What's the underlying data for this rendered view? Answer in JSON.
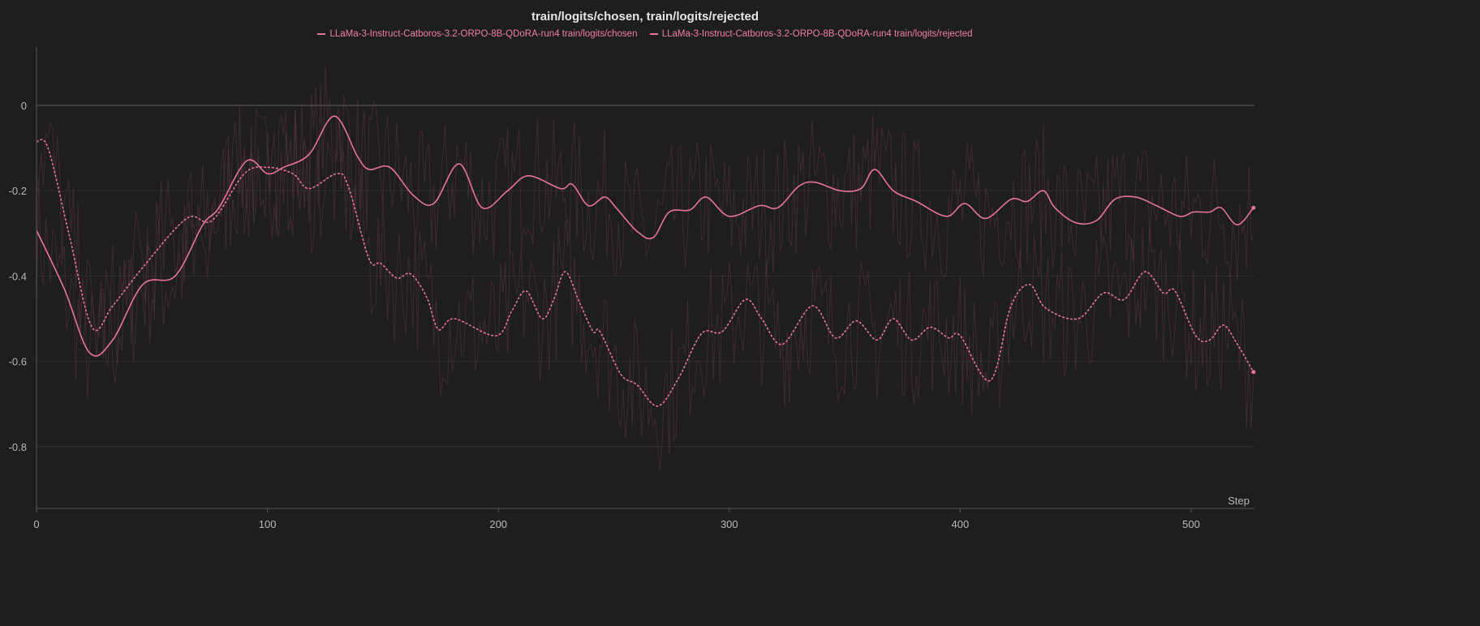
{
  "chart_data": {
    "type": "line",
    "title": "train/logits/chosen, train/logits/rejected",
    "xlabel": "Step",
    "ylabel": "",
    "xlim": [
      0,
      527
    ],
    "ylim": [
      -0.94,
      0.14
    ],
    "xticks": [
      0,
      100,
      200,
      300,
      400,
      500
    ],
    "yticks": [
      0,
      -0.2,
      -0.4,
      -0.6,
      -0.8
    ],
    "grid": true,
    "legend_position": "top-center",
    "series": [
      {
        "name": "LLaMa-3-Instruct-Catboros-3.2-ORPO-8B-QDoRA-run4 train/logits/chosen",
        "style": "solid",
        "color": "#e8739e",
        "x": [
          0,
          12,
          23,
          33,
          46,
          60,
          72,
          79,
          91,
          100,
          107,
          118,
          129,
          139,
          144,
          153,
          163,
          172,
          183,
          193,
          204,
          213,
          227,
          232,
          239,
          246,
          251,
          260,
          267,
          274,
          283,
          290,
          300,
          313,
          321,
          330,
          337,
          348,
          357,
          363,
          371,
          381,
          394,
          402,
          411,
          422,
          429,
          436,
          441,
          450,
          459,
          467,
          476,
          485,
          495,
          501,
          508,
          513,
          520,
          527
        ],
        "y": [
          -0.293,
          -0.43,
          -0.58,
          -0.55,
          -0.42,
          -0.4,
          -0.28,
          -0.24,
          -0.13,
          -0.16,
          -0.145,
          -0.115,
          -0.025,
          -0.12,
          -0.15,
          -0.145,
          -0.21,
          -0.23,
          -0.137,
          -0.24,
          -0.2,
          -0.165,
          -0.195,
          -0.185,
          -0.235,
          -0.215,
          -0.24,
          -0.295,
          -0.31,
          -0.25,
          -0.245,
          -0.215,
          -0.26,
          -0.235,
          -0.24,
          -0.19,
          -0.18,
          -0.2,
          -0.195,
          -0.15,
          -0.2,
          -0.225,
          -0.26,
          -0.23,
          -0.265,
          -0.22,
          -0.225,
          -0.2,
          -0.24,
          -0.275,
          -0.27,
          -0.22,
          -0.215,
          -0.235,
          -0.26,
          -0.25,
          -0.25,
          -0.24,
          -0.28,
          -0.24
        ]
      },
      {
        "name": "LLaMa-3-Instruct-Catboros-3.2-ORPO-8B-QDoRA-run4 train/logits/rejected",
        "style": "dashed",
        "color": "#e8739e",
        "x": [
          0,
          5,
          14,
          24,
          33,
          46,
          65,
          76,
          90,
          100,
          111,
          118,
          130,
          135,
          144,
          149,
          156,
          162,
          169,
          174,
          181,
          199,
          206,
          212,
          219,
          224,
          229,
          235,
          241,
          244,
          253,
          260,
          269,
          278,
          288,
          297,
          307,
          314,
          323,
          336,
          346,
          355,
          364,
          371,
          379,
          387,
          395,
          400,
          413,
          422,
          430,
          437,
          451,
          462,
          471,
          480,
          488,
          493,
          502,
          508,
          514,
          520,
          527
        ],
        "y": [
          -0.085,
          -0.1,
          -0.3,
          -0.52,
          -0.47,
          -0.38,
          -0.265,
          -0.27,
          -0.16,
          -0.145,
          -0.16,
          -0.195,
          -0.16,
          -0.19,
          -0.36,
          -0.37,
          -0.405,
          -0.395,
          -0.45,
          -0.525,
          -0.5,
          -0.54,
          -0.48,
          -0.435,
          -0.5,
          -0.455,
          -0.39,
          -0.46,
          -0.53,
          -0.53,
          -0.63,
          -0.655,
          -0.705,
          -0.64,
          -0.535,
          -0.53,
          -0.455,
          -0.5,
          -0.56,
          -0.47,
          -0.545,
          -0.505,
          -0.55,
          -0.5,
          -0.55,
          -0.52,
          -0.545,
          -0.54,
          -0.645,
          -0.47,
          -0.42,
          -0.475,
          -0.5,
          -0.44,
          -0.455,
          -0.39,
          -0.44,
          -0.435,
          -0.54,
          -0.55,
          -0.515,
          -0.56,
          -0.625
        ]
      }
    ]
  }
}
